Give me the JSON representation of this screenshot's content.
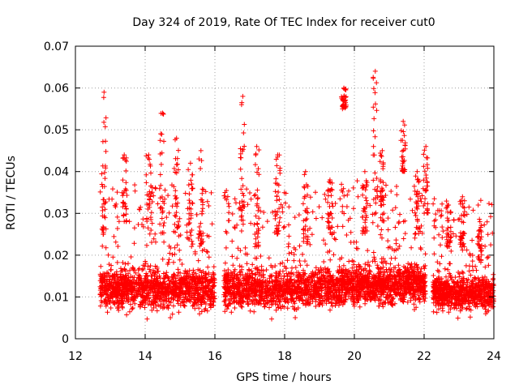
{
  "chart_data": {
    "type": "scatter",
    "title": "Day 324 of 2019, Rate Of TEC Index for receiver cut0",
    "xlabel": "GPS time / hours",
    "ylabel": "ROTI / TECUs",
    "xlim": [
      12,
      24
    ],
    "ylim": [
      0,
      0.07
    ],
    "xticks": [
      12,
      14,
      16,
      18,
      20,
      22,
      24
    ],
    "xtick_labels": [
      "12",
      "14",
      "16",
      "18",
      "20",
      "22",
      "24"
    ],
    "yticks": [
      0,
      0.01,
      0.02,
      0.03,
      0.04,
      0.05,
      0.06,
      0.07
    ],
    "ytick_labels": [
      "0",
      "0.01",
      "0.02",
      "0.03",
      "0.04",
      "0.05",
      "0.06",
      "0.07"
    ],
    "grid": true,
    "marker": "+",
    "color": "#ff0000",
    "series": [
      {
        "name": "ROTI",
        "clusters": [
          {
            "x": [
              12.7,
              16.0
            ],
            "center": 0.012,
            "spread": 0.006,
            "top": 0.037,
            "count": 1300
          },
          {
            "x": [
              16.25,
              19.6
            ],
            "center": 0.012,
            "spread": 0.006,
            "top": 0.036,
            "count": 1300
          },
          {
            "x": [
              19.6,
              22.05
            ],
            "center": 0.013,
            "spread": 0.006,
            "top": 0.038,
            "count": 1100
          },
          {
            "x": [
              22.25,
              24.0
            ],
            "center": 0.011,
            "spread": 0.005,
            "top": 0.034,
            "count": 800
          }
        ],
        "peaks": [
          {
            "x": 12.82,
            "y": [
              0.025,
              0.059
            ]
          },
          {
            "x": 13.4,
            "y": [
              0.028,
              0.044
            ]
          },
          {
            "x": 14.1,
            "y": [
              0.025,
              0.044
            ]
          },
          {
            "x": 14.5,
            "y": [
              0.025,
              0.054
            ]
          },
          {
            "x": 14.9,
            "y": [
              0.022,
              0.048
            ]
          },
          {
            "x": 15.3,
            "y": [
              0.022,
              0.042
            ]
          },
          {
            "x": 15.6,
            "y": [
              0.022,
              0.045
            ]
          },
          {
            "x": 16.8,
            "y": [
              0.028,
              0.058
            ]
          },
          {
            "x": 17.2,
            "y": [
              0.022,
              0.046
            ]
          },
          {
            "x": 17.8,
            "y": [
              0.025,
              0.044
            ]
          },
          {
            "x": 18.6,
            "y": [
              0.022,
              0.04
            ]
          },
          {
            "x": 19.3,
            "y": [
              0.025,
              0.038
            ]
          },
          {
            "x": 19.7,
            "y": [
              0.055,
              0.06
            ]
          },
          {
            "x": 20.3,
            "y": [
              0.025,
              0.04
            ]
          },
          {
            "x": 20.6,
            "y": [
              0.028,
              0.064
            ]
          },
          {
            "x": 20.8,
            "y": [
              0.028,
              0.045
            ]
          },
          {
            "x": 21.4,
            "y": [
              0.04,
              0.052
            ]
          },
          {
            "x": 21.8,
            "y": [
              0.025,
              0.04
            ]
          },
          {
            "x": 22.05,
            "y": [
              0.03,
              0.046
            ]
          },
          {
            "x": 22.7,
            "y": [
              0.022,
              0.032
            ]
          },
          {
            "x": 23.1,
            "y": [
              0.022,
              0.034
            ]
          },
          {
            "x": 23.6,
            "y": [
              0.018,
              0.028
            ]
          }
        ]
      }
    ]
  }
}
